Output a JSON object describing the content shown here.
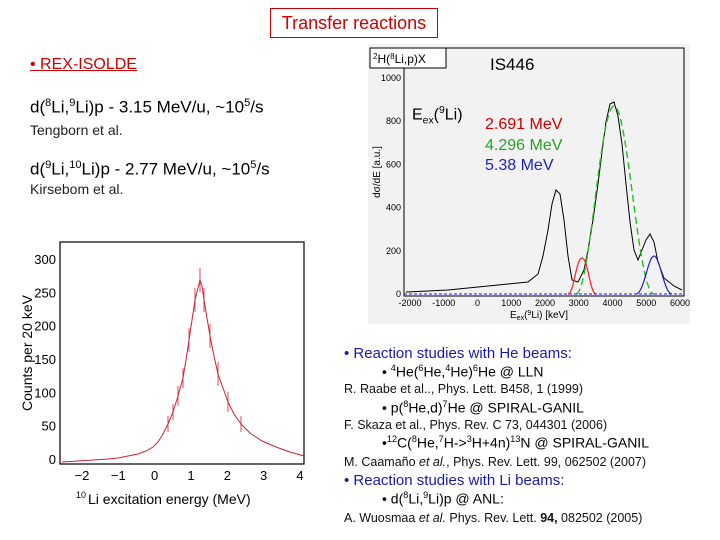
{
  "slide": {
    "title": "Transfer reactions",
    "subtitle_left": "• REX-ISOLDE",
    "line1": {
      "a": "d(",
      "b": "8",
      "c": "Li,",
      "d": "9",
      "e": "Li)p - 3.15 MeV/u, ~10",
      "f": "5",
      "g": "/s"
    },
    "line1_author": "Tengborn et al.",
    "line2": {
      "a": "d(",
      "b": "9",
      "c": "Li,",
      "d": "10",
      "e": "Li)p  - 2.77 MeV/u, ~10",
      "f": "5",
      "g": "/s"
    },
    "line2_author": "Kirsebom et al.",
    "is446_label": "IS446",
    "energies_label": {
      "a": "E",
      "b": "ex",
      "c": "(",
      "d": "9",
      "e": "Li)"
    },
    "energy_red": "2.691 MeV",
    "energy_green": "4.296 MeV",
    "energy_blue": "5.38 MeV"
  },
  "left_plot": {
    "ylabel": "Counts per 20 keV",
    "xlabel_pre": "10",
    "xlabel_post": "Li excitation energy (MeV)",
    "yticks": [
      "300",
      "250",
      "200",
      "150",
      "100",
      "50",
      "0"
    ],
    "xticks": [
      "−2",
      "−1",
      "0",
      "1",
      "2",
      "3",
      "4"
    ]
  },
  "right_plot": {
    "reaction_a": "2",
    "reaction_b": "H(",
    "reaction_c": "8",
    "reaction_d": "Li,p)X",
    "ylabel": "dσ/dE [a.u.]",
    "xlabel_a": "E",
    "xlabel_b": "ex",
    "xlabel_c": "(",
    "xlabel_d": "9",
    "xlabel_e": "Li) [keV]",
    "yticks": [
      "1000",
      "800",
      "600",
      "400",
      "200",
      "0"
    ],
    "xticks": [
      "-2000",
      "-1000",
      "0",
      "1000",
      "2000",
      "3000",
      "4000",
      "5000",
      "6000"
    ]
  },
  "list": {
    "h1": "• Reaction studies with He beams:",
    "b1": {
      "a": "• ",
      "b": "4",
      "c": "He(",
      "d": "6",
      "e": "He,",
      "f": "4",
      "g": "He)",
      "h": "6",
      "i": "He @ LLN"
    },
    "r1": "R. Raabe et al.., Phys. Lett. B458, 1 (1999)",
    "b2": {
      "a": "• p(",
      "b": "8",
      "c": "He,d)",
      "d": "7",
      "e": "He  @ SPIRAL-GANIL"
    },
    "r2": "F. Skaza et al., Phys. Rev. C 73, 044301 (2006)",
    "b3": {
      "a": "•",
      "b": "12",
      "c": "C(",
      "d": "8",
      "e": "He,",
      "f": "7",
      "g": "H->",
      "h": "3",
      "i": "H+4n)",
      "j": "13",
      "k": "N  @ SPIRAL-GANIL"
    },
    "r3_a": "M. Caamaño ",
    "r3_b": "et al.",
    "r3_c": ", Phys. Rev. Lett. 99, 062502 (2007)",
    "h2": "• Reaction studies with Li beams:",
    "b4": {
      "a": "• d(",
      "b": "8",
      "c": "Li,",
      "d": "9",
      "e": "Li)p  @ ANL:"
    },
    "r4_a": "A. Wuosmaa ",
    "r4_b": "et al.",
    "r4_c": " Phys. Rev. Lett. ",
    "r4_d": "94,",
    "r4_e": " 082502 (2005)"
  }
}
